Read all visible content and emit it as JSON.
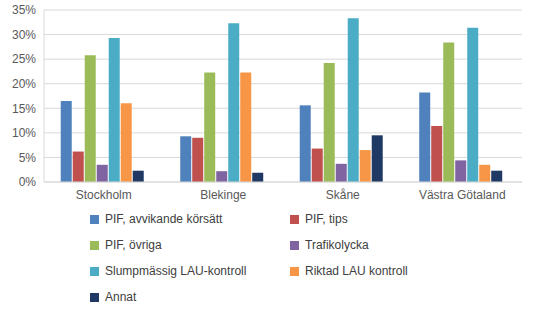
{
  "chart_data": {
    "type": "bar",
    "categories": [
      "Stockholm",
      "Blekinge",
      "Skåne",
      "Västra Götaland"
    ],
    "series": [
      {
        "name": "PIF, avvikande körsätt",
        "color": "#4f81bd",
        "values": [
          16.5,
          9.3,
          15.6,
          18.2
        ]
      },
      {
        "name": "PIF, tips",
        "color": "#c0504d",
        "values": [
          6.2,
          9.0,
          6.8,
          11.4
        ]
      },
      {
        "name": "PIF, övriga",
        "color": "#9bbb59",
        "values": [
          25.8,
          22.3,
          24.2,
          28.4
        ]
      },
      {
        "name": "Trafikolycka",
        "color": "#8064a2",
        "values": [
          3.5,
          2.2,
          3.7,
          4.4
        ]
      },
      {
        "name": "Slumpmässig LAU-kontroll",
        "color": "#4bacc6",
        "values": [
          29.3,
          32.3,
          33.3,
          31.4
        ]
      },
      {
        "name": "Riktad LAU kontroll",
        "color": "#f79646",
        "values": [
          16.0,
          22.3,
          6.5,
          3.5
        ]
      },
      {
        "name": "Annat",
        "color": "#1f3864",
        "values": [
          2.3,
          1.9,
          9.5,
          2.3
        ]
      }
    ],
    "ylim": [
      0,
      35
    ],
    "yticks": [
      {
        "value": 0,
        "label": "0%"
      },
      {
        "value": 5,
        "label": "5%"
      },
      {
        "value": 10,
        "label": "10%"
      },
      {
        "value": 15,
        "label": "15%"
      },
      {
        "value": 20,
        "label": "20%"
      },
      {
        "value": 25,
        "label": "25%"
      },
      {
        "value": 30,
        "label": "30%"
      },
      {
        "value": 35,
        "label": "35%"
      }
    ],
    "grid": true,
    "legend": "bottom"
  }
}
